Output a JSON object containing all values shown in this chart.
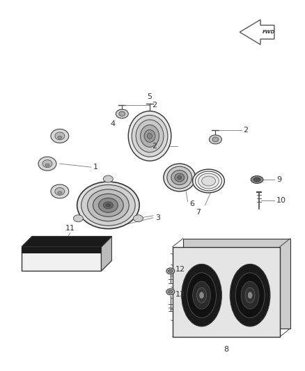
{
  "bg_color": "#ffffff",
  "figsize": [
    4.38,
    5.33
  ],
  "dpi": 100,
  "label_color": "#333333",
  "line_color": "#666666",
  "part_color": "#555555"
}
